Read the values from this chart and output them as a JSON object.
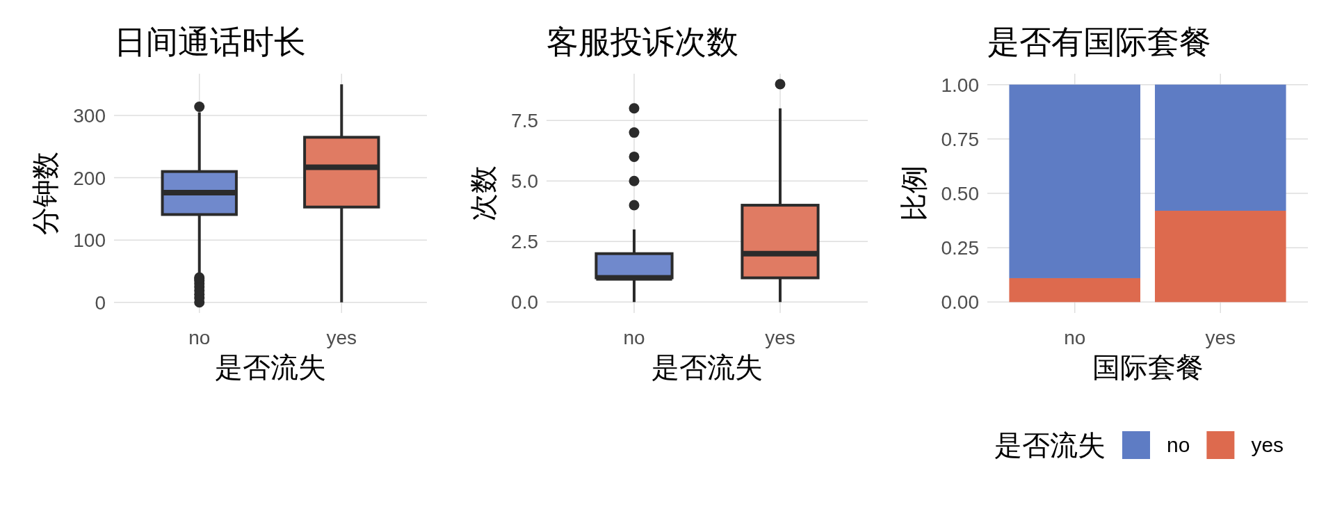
{
  "chart_data": [
    {
      "type": "box",
      "title": "日间通话时长",
      "xlabel": "是否流失",
      "ylabel": "分钟数",
      "categories": [
        "no",
        "yes"
      ],
      "colors": [
        "#7089cc",
        "#e07b63"
      ],
      "boxes": [
        {
          "low": 45,
          "q1": 141,
          "median": 176,
          "q3": 210,
          "high": 305,
          "outliers": [
            0,
            7,
            13,
            19,
            25,
            30,
            35,
            38,
            40,
            314
          ]
        },
        {
          "low": 0,
          "q1": 153,
          "median": 217,
          "q3": 265,
          "high": 350
        }
      ],
      "ylim": [
        -17,
        367
      ],
      "yticks": [
        0,
        100,
        200,
        300
      ],
      "grid": true
    },
    {
      "type": "box",
      "title": "客服投诉次数",
      "xlabel": "是否流失",
      "ylabel": "次数",
      "categories": [
        "no",
        "yes"
      ],
      "colors": [
        "#7089cc",
        "#e07b63"
      ],
      "boxes": [
        {
          "low": 0,
          "q1": 1,
          "median": 1,
          "q3": 2,
          "high": 3,
          "outliers": [
            4,
            5,
            6,
            7,
            8
          ]
        },
        {
          "low": 0,
          "q1": 1,
          "median": 2,
          "q3": 4,
          "high": 8,
          "outliers": [
            9
          ]
        }
      ],
      "ylim": [
        -0.45,
        9.43
      ],
      "yticks": [
        {
          "value": 0,
          "label": "0.0"
        },
        {
          "value": 2.5,
          "label": "2.5"
        },
        {
          "value": 5,
          "label": "5.0"
        },
        {
          "value": 7.5,
          "label": "7.5"
        }
      ],
      "grid": true
    },
    {
      "type": "bar",
      "stacked": true,
      "title": "是否有国际套餐",
      "xlabel": "国际套餐",
      "ylabel": "比例",
      "legend_title": "是否流失",
      "categories": [
        "no",
        "yes"
      ],
      "series": [
        {
          "name": "yes",
          "color": "#dd6a4e",
          "values": [
            0.11,
            0.42
          ]
        },
        {
          "name": "no",
          "color": "#5e7cc4",
          "values": [
            0.89,
            0.58
          ]
        }
      ],
      "ylim": [
        -0.05,
        1.05
      ],
      "yticks": [
        {
          "value": 0,
          "label": "0.00"
        },
        {
          "value": 0.25,
          "label": "0.25"
        },
        {
          "value": 0.5,
          "label": "0.50"
        },
        {
          "value": 0.75,
          "label": "0.75"
        },
        {
          "value": 1,
          "label": "1.00"
        }
      ],
      "grid": true,
      "legend": "bottom"
    }
  ]
}
